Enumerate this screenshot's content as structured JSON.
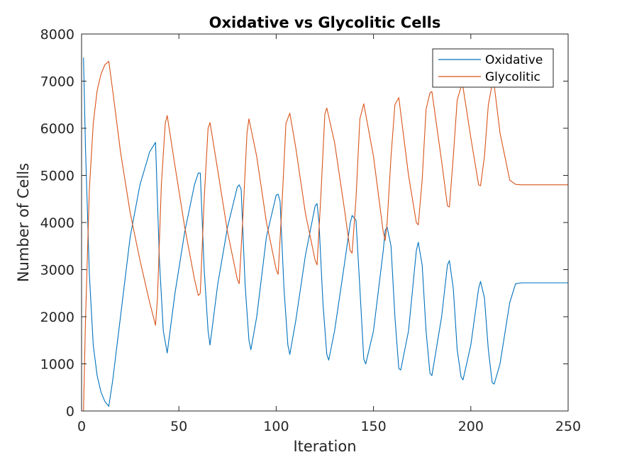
{
  "chart_data": {
    "type": "line",
    "title": "Oxidative vs Glycolitic Cells",
    "xlabel": "Iteration",
    "ylabel": "Number of Cells",
    "xlim": [
      0,
      250
    ],
    "ylim": [
      0,
      8000
    ],
    "xticks": [
      0,
      50,
      100,
      150,
      200,
      250
    ],
    "yticks": [
      0,
      1000,
      2000,
      3000,
      4000,
      5000,
      6000,
      7000,
      8000
    ],
    "xtick_labels": [
      "0",
      "50",
      "100",
      "150",
      "200",
      "250"
    ],
    "ytick_labels": [
      "0",
      "1000",
      "2000",
      "3000",
      "4000",
      "5000",
      "6000",
      "7000",
      "8000"
    ],
    "grid": false,
    "legend_position": "top-right",
    "series": [
      {
        "name": "Oxidative",
        "color": "#0072BD",
        "x": [
          1,
          2,
          4,
          6,
          8,
          10,
          12,
          14,
          16,
          20,
          25,
          30,
          35,
          38,
          40,
          42,
          44,
          48,
          53,
          58,
          60,
          61,
          63,
          65,
          66,
          70,
          75,
          80,
          81,
          82,
          84,
          86,
          87,
          90,
          95,
          100,
          101,
          102,
          104,
          106,
          107,
          110,
          115,
          120,
          121,
          122,
          124,
          126,
          127,
          130,
          135,
          138,
          139,
          141,
          143,
          145,
          146,
          150,
          155,
          156,
          157,
          159,
          161,
          163,
          164,
          168,
          172,
          173,
          175,
          177,
          179,
          180,
          185,
          188,
          189,
          191,
          193,
          195,
          196,
          200,
          204,
          205,
          207,
          209,
          211,
          212,
          215,
          220,
          223,
          226,
          230,
          240,
          250
        ],
        "y": [
          7500,
          5600,
          2900,
          1400,
          750,
          400,
          200,
          100,
          650,
          2000,
          3700,
          4800,
          5500,
          5700,
          3200,
          1700,
          1230,
          2500,
          3800,
          4800,
          5050,
          5050,
          3000,
          1700,
          1400,
          2700,
          3900,
          4750,
          4800,
          4700,
          2700,
          1500,
          1300,
          2000,
          3700,
          4580,
          4600,
          4450,
          2600,
          1400,
          1200,
          1900,
          3300,
          4350,
          4400,
          4000,
          2300,
          1200,
          1080,
          1700,
          3100,
          3980,
          4150,
          4050,
          2600,
          1100,
          1000,
          1700,
          3400,
          3830,
          3900,
          3500,
          2000,
          900,
          870,
          1700,
          3400,
          3580,
          3100,
          1700,
          800,
          750,
          2000,
          3100,
          3190,
          2600,
          1300,
          720,
          660,
          1400,
          2600,
          2750,
          2400,
          1300,
          600,
          570,
          1000,
          2300,
          2700,
          2720,
          2720,
          2720,
          2720
        ]
      },
      {
        "name": "Glycolitic",
        "color": "#D95319",
        "x": [
          1,
          2,
          4,
          6,
          8,
          10,
          12,
          14,
          16,
          20,
          25,
          30,
          35,
          38,
          39,
          41,
          43,
          44,
          48,
          53,
          58,
          60,
          61,
          63,
          65,
          66,
          70,
          75,
          80,
          81,
          83,
          85,
          86,
          90,
          95,
          100,
          101,
          103,
          105,
          107,
          110,
          115,
          120,
          121,
          123,
          125,
          126,
          130,
          135,
          138,
          139,
          141,
          143,
          145,
          150,
          155,
          156,
          157,
          159,
          161,
          163,
          168,
          172,
          173,
          175,
          177,
          179,
          180,
          185,
          188,
          189,
          191,
          193,
          195,
          196,
          200,
          204,
          205,
          207,
          209,
          211,
          212,
          215,
          220,
          223,
          226,
          230,
          240,
          250
        ],
        "y": [
          0,
          1900,
          4700,
          6100,
          6800,
          7150,
          7350,
          7420,
          6800,
          5500,
          4200,
          3200,
          2300,
          1820,
          2400,
          4800,
          6100,
          6270,
          5200,
          3900,
          2800,
          2450,
          2500,
          4500,
          6000,
          6120,
          5100,
          3800,
          2800,
          2700,
          4200,
          5900,
          6200,
          5400,
          4000,
          3000,
          2900,
          4400,
          6100,
          6320,
          5600,
          4200,
          3200,
          3100,
          4600,
          6300,
          6430,
          5700,
          4300,
          3400,
          3350,
          4500,
          6200,
          6520,
          5400,
          3800,
          3620,
          4000,
          5400,
          6500,
          6650,
          5000,
          4000,
          3950,
          4900,
          6400,
          6750,
          6780,
          5300,
          4350,
          4330,
          5400,
          6600,
          6880,
          6870,
          5800,
          4800,
          4780,
          5400,
          6500,
          6940,
          6920,
          5900,
          4900,
          4810,
          4800,
          4800,
          4800,
          4800
        ]
      }
    ]
  }
}
